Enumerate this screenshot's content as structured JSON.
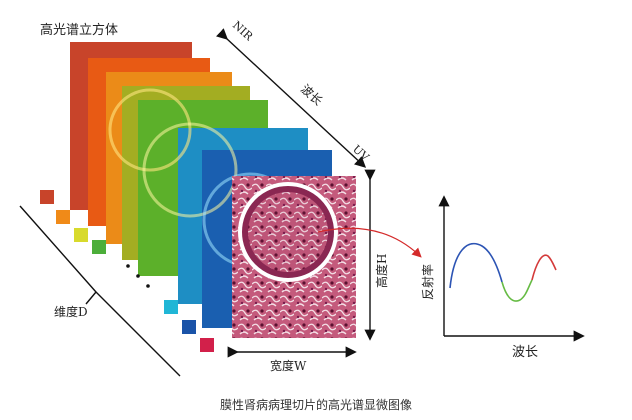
{
  "title": "高光谱立方体",
  "caption": "膜性肾病病理切片的高光谱显微图像",
  "labels": {
    "nir": "NIR",
    "wavelength_axis": "波长",
    "uv": "UV",
    "height": "高度H",
    "width": "宽度W",
    "dimension": "维度D",
    "reflectance": "反射率",
    "wavelength_x": "波长"
  },
  "colors": {
    "slices": [
      "#c8442a",
      "#e85a14",
      "#eb8b18",
      "#a3ad22",
      "#5cb02a",
      "#1e8ec4",
      "#1a5fb0",
      "#7a1d4d"
    ],
    "squares": [
      "#c8442a",
      "#f08a18",
      "#d8da2c",
      "#4cae3a",
      "#20b6d6",
      "#1a53a8",
      "#d2204a"
    ],
    "curve_blue": "#2c54b4",
    "curve_green": "#66bb44",
    "curve_red": "#d43a3a",
    "pointer": "#d42a2a"
  }
}
